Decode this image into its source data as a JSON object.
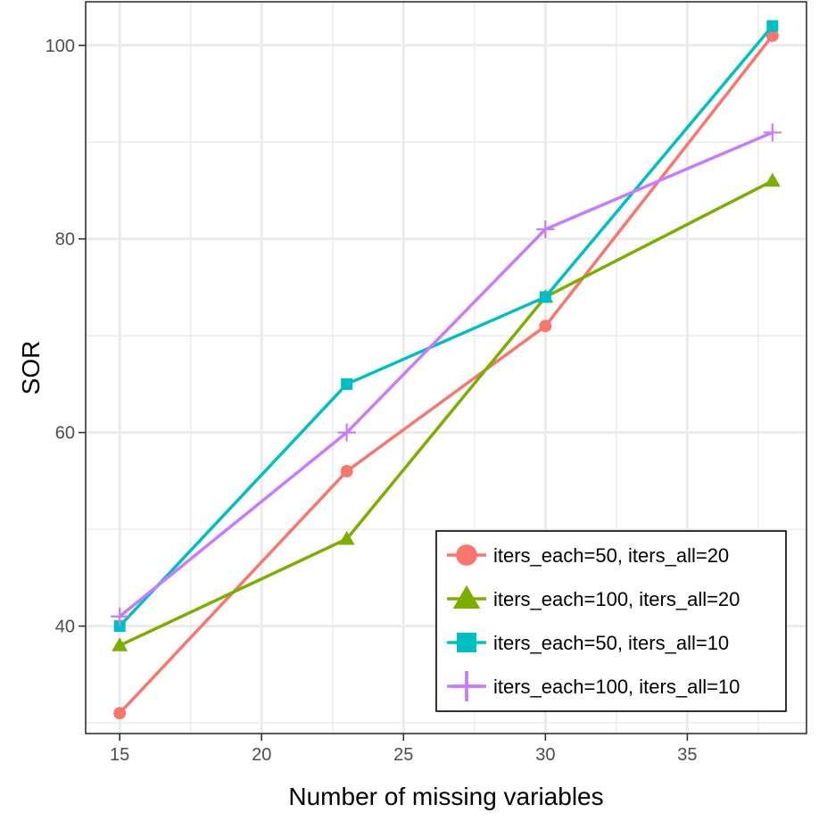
{
  "chart_data": {
    "type": "line",
    "xlabel": "Number of missing variables",
    "ylabel": "SOR",
    "xlim": [
      13.8,
      39.2
    ],
    "ylim": [
      28.9,
      104.5
    ],
    "xticks_major": [
      15,
      20,
      25,
      30,
      35
    ],
    "xticks_minor": [
      17.5,
      22.5,
      27.5,
      32.5,
      37.5
    ],
    "yticks_major": [
      40,
      60,
      80,
      100
    ],
    "yticks_minor": [
      30,
      50,
      70,
      90
    ],
    "grid": true,
    "legend_position": "bottom-right",
    "x": [
      15,
      23,
      30,
      38
    ],
    "series": [
      {
        "name": "iters_each=50, iters_all=20",
        "values": [
          31,
          56,
          71,
          101
        ],
        "color": "#F8766D",
        "marker": "circle"
      },
      {
        "name": "iters_each=100, iters_all=20",
        "values": [
          38,
          49,
          74,
          86
        ],
        "color": "#7CAE00",
        "marker": "triangle"
      },
      {
        "name": "iters_each=50, iters_all=10",
        "values": [
          40,
          65,
          74,
          102
        ],
        "color": "#00BFC4",
        "marker": "square"
      },
      {
        "name": "iters_each=100, iters_all=10",
        "values": [
          41,
          60,
          81,
          91
        ],
        "color": "#C77CFF",
        "marker": "plus"
      }
    ]
  }
}
